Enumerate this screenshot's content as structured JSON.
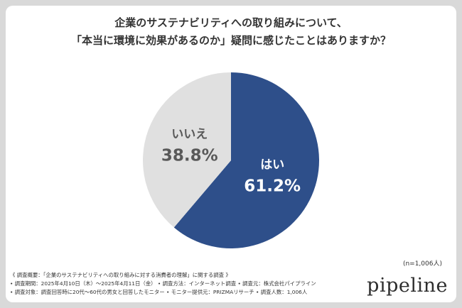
{
  "chart_data": {
    "type": "pie",
    "title_lines": [
      "企業のサステナビリティへの取り組みについて、",
      "「本当に環境に効果があるのか」疑問に感じたことはありますか？"
    ],
    "slices": [
      {
        "label": "はい",
        "value": 61.2,
        "value_label": "61.2%",
        "color": "#2e4f8a",
        "text_color": "#ffffff"
      },
      {
        "label": "いいえ",
        "value": 38.8,
        "value_label": "38.8%",
        "color": "#e0e0e0",
        "text_color": "#595959"
      }
    ],
    "note": "(n=1,006人)"
  },
  "footer": {
    "line1": "《 調査概要：「企業のサステナビリティへの取り組みに対する消費者の理解」に関する調査 》",
    "line2": "• 調査期間：2025年4月10日（木）〜2025年4月11日（金） • 調査方法：インターネット調査 • 調査元：株式会社パイプライン",
    "line3": "• 調査対象：調査回答時に20代〜60代の男女と回答したモニター • モニター提供元：PRIZMAリサーチ • 調査人数：1,006人"
  },
  "logo": {
    "text": "pipeline"
  }
}
